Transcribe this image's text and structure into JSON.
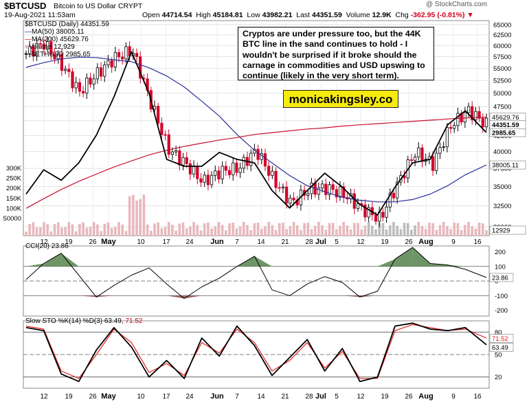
{
  "header": {
    "symbol": "$BTCUSD",
    "name": "Bitcoin to US Dollar  CRYPT",
    "credit": "@ StockCharts.com",
    "datetime": "19-Aug-2021 11:53am",
    "open_label": "Open",
    "open": "44714.54",
    "high_label": "High",
    "high": "45184.81",
    "low_label": "Low",
    "low": "43982.21",
    "last_label": "Last",
    "last": "44351.59",
    "volume_label": "Volume",
    "volume": "12.9K",
    "chg_label": "Chg",
    "chg": "-362.95 (-0.81%)"
  },
  "legend": {
    "symbol": "$BTCUSD (Daily) 44351.59",
    "ma50": "MA(50) 38005.11",
    "ma200": "MA(200) 45629.76",
    "volume": "Volume 12,929",
    "ethusd": "$ETHUSD 2985.65"
  },
  "annotation": "Cryptos are under pressure too, but the 44K BTC line in the sand continues to hold - I wouldn't be surprised if it broke should the carnage in commodities and USD upswing to continue (likely in the very short term).",
  "brand": "monicakingsley.co",
  "cci": {
    "title": "CCI(20) 23.86"
  },
  "sto": {
    "title_black": "Slow STO %K(14) %D(3) 63.49,",
    "title_red": "71.52"
  },
  "colors": {
    "candle_up": "#000000",
    "candle_down": "#d4002a",
    "ma50": "#2b2f9a",
    "ma200": "#c8102e",
    "volume": "#e8b8bc",
    "cci_fill": "#5f8a55",
    "cci_fill_neg": "#8f5a52",
    "eth_line": "#000000",
    "stoch_d": "#e0201e"
  },
  "chart_data": [
    {
      "type": "line",
      "title": "$BTCUSD (Daily)",
      "ylabel": "",
      "y_scale": "log",
      "ylim": [
        29000,
        66000
      ],
      "x_dates": [
        "2021-04-10",
        "2021-04-15",
        "2021-04-20",
        "2021-04-25",
        "2021-04-30",
        "2021-05-05",
        "2021-05-10",
        "2021-05-15",
        "2021-05-20",
        "2021-05-25",
        "2021-05-30",
        "2021-06-04",
        "2021-06-09",
        "2021-06-14",
        "2021-06-19",
        "2021-06-24",
        "2021-06-29",
        "2021-07-04",
        "2021-07-09",
        "2021-07-14",
        "2021-07-19",
        "2021-07-24",
        "2021-07-29",
        "2021-08-03",
        "2021-08-08",
        "2021-08-13",
        "2021-08-19"
      ],
      "x_tick_labels": [
        "12",
        "19",
        "26",
        "May",
        "10",
        "17",
        "24",
        "Jun",
        "7",
        "14",
        "21",
        "28",
        "Jul",
        "5",
        "12",
        "19",
        "26",
        "Aug",
        "9",
        "16"
      ],
      "y_ticks": [
        30000,
        32500,
        35000,
        37500,
        40000,
        42500,
        45000,
        47500,
        50000,
        52500,
        55000,
        57500,
        60000,
        62500,
        65000
      ],
      "series": [
        {
          "name": "$BTCUSD",
          "values": [
            58200,
            60500,
            55800,
            50200,
            53800,
            57200,
            58900,
            48600,
            40500,
            38200,
            35600,
            37100,
            37500,
            40200,
            35800,
            32800,
            34600,
            34800,
            33900,
            32100,
            30900,
            35400,
            39900,
            38100,
            44200,
            46800,
            44352
          ]
        },
        {
          "name": "MA(50)",
          "values": [
            55200,
            56200,
            57000,
            57400,
            57300,
            56800,
            56400,
            55100,
            53400,
            51200,
            48500,
            45800,
            42700,
            40200,
            38300,
            36500,
            35100,
            34300,
            33600,
            33200,
            33000,
            33000,
            33300,
            34000,
            35100,
            36600,
            38005
          ]
        },
        {
          "name": "MA(200)",
          "values": [
            32200,
            33400,
            34600,
            35700,
            36700,
            37700,
            38600,
            39500,
            40200,
            40800,
            41300,
            41800,
            42200,
            42700,
            43000,
            43300,
            43600,
            43800,
            44100,
            44300,
            44500,
            44700,
            44900,
            45100,
            45300,
            45500,
            45630
          ]
        },
        {
          "name": "$ETHUSD",
          "values": [
            2100,
            2450,
            2300,
            2550,
            2950,
            3500,
            4150,
            3550,
            2600,
            2500,
            2500,
            2700,
            2600,
            2550,
            2150,
            1900,
            2150,
            2400,
            2200,
            1950,
            1800,
            2200,
            2550,
            2600,
            3100,
            3300,
            2986
          ]
        }
      ],
      "right_scale_labels": [
        "2985.65",
        "45629.76",
        "44351.59",
        "38005.11",
        "12929"
      ],
      "left_volume_ticks": [
        "300K",
        "250K",
        "200K",
        "150K",
        "100K",
        "50000"
      ]
    },
    {
      "type": "area",
      "title": "CCI(20) 23.86",
      "ylim": [
        -240,
        240
      ],
      "y_ticks": [
        200,
        100,
        0,
        -100,
        -200
      ],
      "series": [
        {
          "name": "CCI(20)",
          "values": [
            10,
            120,
            190,
            40,
            -110,
            -30,
            40,
            90,
            -20,
            -120,
            -40,
            20,
            100,
            170,
            -60,
            -100,
            -20,
            30,
            -10,
            -110,
            -70,
            150,
            230,
            120,
            110,
            80,
            24
          ]
        }
      ]
    },
    {
      "type": "line",
      "title": "Slow STO %K(14) %D(3)",
      "ylim": [
        5,
        95
      ],
      "y_ticks": [
        80,
        50,
        20
      ],
      "series": [
        {
          "name": "%K(14)",
          "values": [
            86,
            82,
            24,
            14,
            56,
            86,
            60,
            20,
            42,
            18,
            72,
            48,
            88,
            62,
            22,
            46,
            70,
            28,
            58,
            14,
            20,
            88,
            92,
            84,
            82,
            86,
            63
          ]
        },
        {
          "name": "%D(3)",
          "values": [
            88,
            84,
            28,
            18,
            50,
            84,
            66,
            26,
            38,
            22,
            66,
            52,
            84,
            66,
            28,
            42,
            66,
            32,
            54,
            18,
            18,
            82,
            90,
            86,
            82,
            84,
            72
          ]
        }
      ],
      "right_scale_labels": [
        "71.52",
        "63.49"
      ]
    }
  ]
}
